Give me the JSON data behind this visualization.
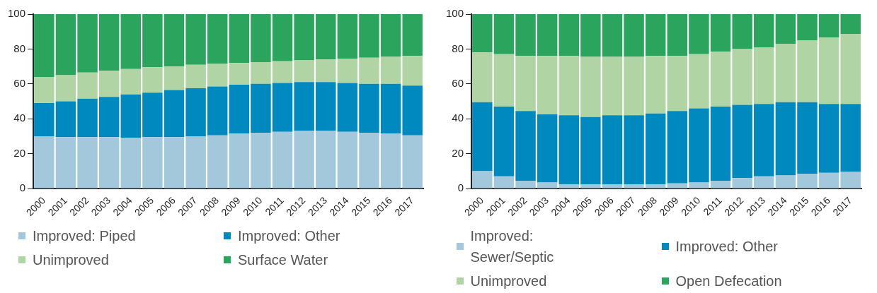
{
  "chart_data": [
    {
      "type": "bar",
      "stacked": true,
      "grid": false,
      "legend": "bottom",
      "categories": [
        "2000",
        "2001",
        "2002",
        "2003",
        "2004",
        "2005",
        "2006",
        "2007",
        "2008",
        "2009",
        "2010",
        "2011",
        "2012",
        "2013",
        "2014",
        "2015",
        "2016",
        "2017"
      ],
      "ylim": [
        0,
        100
      ],
      "yticks": [
        0,
        20,
        40,
        60,
        80,
        100
      ],
      "series": [
        {
          "name": "Improved: Piped",
          "color": "#a3c8dc",
          "values": [
            30,
            29.5,
            29.5,
            29.5,
            29,
            29.5,
            29.5,
            30,
            30.5,
            31.5,
            32,
            32.5,
            33,
            33,
            32.5,
            32,
            31.5,
            30.5
          ]
        },
        {
          "name": "Improved: Other",
          "color": "#0089bf",
          "values": [
            19,
            20.5,
            22,
            23,
            25,
            25.5,
            27,
            27.5,
            28,
            28,
            28,
            28,
            28,
            28,
            28,
            28,
            28.5,
            28.5
          ]
        },
        {
          "name": "Unimproved",
          "color": "#b1d4a4",
          "values": [
            15,
            15,
            15,
            15,
            14.5,
            14.5,
            13.5,
            13.5,
            13,
            12.5,
            12.5,
            12.5,
            12.5,
            13,
            14,
            15,
            15.5,
            17
          ]
        },
        {
          "name": "Surface Water",
          "color": "#2ba55d",
          "values": [
            36,
            35,
            33.5,
            32.5,
            31.5,
            30.5,
            30,
            29,
            28.5,
            28,
            27.5,
            27,
            26.5,
            26,
            25.5,
            25,
            24.5,
            24
          ]
        }
      ]
    },
    {
      "type": "bar",
      "stacked": true,
      "grid": false,
      "legend": "bottom",
      "categories": [
        "2000",
        "2001",
        "2002",
        "2003",
        "2004",
        "2005",
        "2006",
        "2007",
        "2008",
        "2009",
        "2010",
        "2011",
        "2012",
        "2013",
        "2014",
        "2015",
        "2016",
        "2017"
      ],
      "ylim": [
        0,
        100
      ],
      "yticks": [
        0,
        20,
        40,
        60,
        80,
        100
      ],
      "series": [
        {
          "name": "Improved: Sewer/Septic",
          "color": "#a3c8dc",
          "values": [
            10,
            7,
            4.5,
            3.5,
            2.5,
            2.5,
            2.5,
            2.5,
            2.5,
            3,
            3.5,
            4.5,
            6,
            7,
            7.5,
            8.5,
            9,
            9.5
          ]
        },
        {
          "name": "Improved: Other",
          "color": "#0089bf",
          "values": [
            39.5,
            40,
            40,
            39,
            39.5,
            38.5,
            39.5,
            39.5,
            40.5,
            41.5,
            42.5,
            42.5,
            42,
            41.5,
            42,
            41,
            39.5,
            39
          ]
        },
        {
          "name": "Unimproved",
          "color": "#b1d4a4",
          "values": [
            28.5,
            30,
            31.5,
            33.5,
            34,
            34.5,
            33.5,
            33.5,
            33,
            31.5,
            31,
            31.5,
            32,
            32.5,
            33.5,
            35.5,
            38,
            40
          ]
        },
        {
          "name": "Open Defecation",
          "color": "#2ba55d",
          "values": [
            22,
            23,
            24,
            24,
            24,
            24.5,
            24.5,
            24.5,
            24,
            24,
            23,
            21.5,
            20,
            19,
            17,
            15,
            13.5,
            11.5
          ]
        }
      ]
    }
  ]
}
